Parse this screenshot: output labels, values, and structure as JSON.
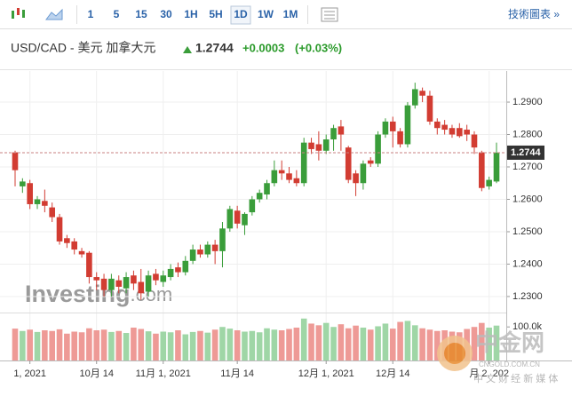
{
  "toolbar": {
    "intervals": [
      "1",
      "5",
      "15",
      "30",
      "1H",
      "5H",
      "1D",
      "1W",
      "1M"
    ],
    "selected": "1D",
    "link": "技術圖表 »"
  },
  "quote": {
    "title": "USD/CAD - 美元 加拿大元",
    "price": "1.2744",
    "change": "+0.0003",
    "change_pct": "(+0.03%)"
  },
  "watermark": {
    "brand": "Investing",
    "brand_suffix": ".com",
    "logo": "中金网",
    "logo_sub": "CNGOLD.COM.CN",
    "slogan": "中 文 财 经 新 媒 体"
  },
  "chart_data": {
    "type": "candlestick",
    "categories": [
      null,
      null,
      null,
      null,
      null,
      null,
      null,
      null,
      null,
      null,
      null,
      null,
      null,
      null,
      null,
      null,
      null,
      null,
      null,
      null,
      null,
      null,
      null,
      null,
      null,
      null,
      null,
      null,
      null,
      null,
      null,
      null,
      null,
      null,
      null,
      null,
      null,
      null,
      null,
      null,
      null,
      null,
      null,
      null,
      null,
      null,
      null,
      null,
      null,
      null,
      null,
      null,
      null,
      null,
      null,
      null,
      null,
      null,
      null,
      null,
      null,
      null,
      null,
      null,
      null,
      null
    ],
    "open": [
      1.2745,
      1.264,
      1.265,
      1.2585,
      1.2595,
      1.2575,
      1.2545,
      1.248,
      1.247,
      1.244,
      1.2435,
      1.236,
      1.2355,
      1.232,
      1.235,
      1.2325,
      1.2365,
      1.2345,
      1.2315,
      1.237,
      1.2345,
      1.236,
      1.239,
      1.2375,
      1.241,
      1.2445,
      1.243,
      1.246,
      1.244,
      1.251,
      1.2565,
      1.252,
      1.256,
      1.26,
      1.2615,
      1.265,
      1.269,
      1.268,
      1.2665,
      1.265,
      1.2775,
      1.277,
      1.275,
      1.2785,
      1.2825,
      1.276,
      1.268,
      1.265,
      1.272,
      1.271,
      1.28,
      1.284,
      1.281,
      1.277,
      1.289,
      1.2935,
      1.292,
      1.284,
      1.283,
      1.282,
      1.282,
      1.2815,
      1.28,
      1.2745,
      1.264,
      1.2655
    ],
    "high": [
      1.275,
      1.2665,
      1.266,
      1.261,
      1.263,
      1.259,
      1.2555,
      1.249,
      1.248,
      1.245,
      1.244,
      1.2375,
      1.237,
      1.237,
      1.2365,
      1.2375,
      1.238,
      1.2385,
      1.238,
      1.2385,
      1.238,
      1.24,
      1.2405,
      1.2425,
      1.246,
      1.246,
      1.247,
      1.2475,
      1.253,
      1.258,
      1.258,
      1.256,
      1.261,
      1.263,
      1.266,
      1.272,
      1.272,
      1.27,
      1.269,
      1.279,
      1.279,
      1.281,
      1.28,
      1.283,
      1.2845,
      1.2765,
      1.269,
      1.272,
      1.273,
      1.281,
      1.285,
      1.2855,
      1.282,
      1.29,
      1.296,
      1.2945,
      1.2935,
      1.285,
      1.2845,
      1.283,
      1.2835,
      1.283,
      1.281,
      1.275,
      1.267,
      1.2775
    ],
    "low": [
      1.264,
      1.262,
      1.257,
      1.257,
      1.256,
      1.253,
      1.246,
      1.245,
      1.243,
      1.242,
      1.234,
      1.232,
      1.23,
      1.23,
      1.231,
      1.231,
      1.232,
      1.229,
      1.23,
      1.2335,
      1.233,
      1.235,
      1.236,
      1.2365,
      1.24,
      1.242,
      1.242,
      1.24,
      1.239,
      1.25,
      1.251,
      1.249,
      1.255,
      1.259,
      1.26,
      1.264,
      1.266,
      1.265,
      1.264,
      1.264,
      1.274,
      1.272,
      1.274,
      1.275,
      1.275,
      1.265,
      1.261,
      1.263,
      1.27,
      1.27,
      1.279,
      1.276,
      1.276,
      1.276,
      1.288,
      1.29,
      1.283,
      1.28,
      1.28,
      1.279,
      1.279,
      1.278,
      1.274,
      1.2625,
      1.263,
      1.265
    ],
    "close": [
      1.269,
      1.2655,
      1.2585,
      1.26,
      1.258,
      1.2545,
      1.247,
      1.2465,
      1.2445,
      1.243,
      1.236,
      1.235,
      1.232,
      1.2355,
      1.233,
      1.236,
      1.234,
      1.231,
      1.2365,
      1.235,
      1.2365,
      1.2385,
      1.2375,
      1.241,
      1.2445,
      1.243,
      1.246,
      1.244,
      1.251,
      1.257,
      1.2525,
      1.2555,
      1.26,
      1.262,
      1.265,
      1.269,
      1.268,
      1.266,
      1.265,
      1.2775,
      1.2755,
      1.275,
      1.2785,
      1.282,
      1.28,
      1.266,
      1.265,
      1.271,
      1.271,
      1.28,
      1.284,
      1.281,
      1.277,
      1.289,
      1.294,
      1.292,
      1.284,
      1.282,
      1.2815,
      1.28,
      1.2795,
      1.28,
      1.276,
      1.2635,
      1.266,
      1.2744
    ],
    "volume": [
      95000,
      88000,
      92000,
      85000,
      90000,
      88000,
      93000,
      80000,
      86000,
      84000,
      96000,
      90000,
      92000,
      85000,
      88000,
      82000,
      98000,
      94000,
      87000,
      80000,
      86000,
      84000,
      90000,
      78000,
      85000,
      88000,
      83000,
      92000,
      100000,
      95000,
      90000,
      86000,
      88000,
      84000,
      96000,
      92000,
      90000,
      94000,
      98000,
      125000,
      110000,
      105000,
      112000,
      100000,
      108000,
      96000,
      104000,
      98000,
      92000,
      102000,
      110000,
      95000,
      115000,
      118000,
      105000,
      96000,
      92000,
      88000,
      90000,
      86000,
      84000,
      94000,
      100000,
      112000,
      98000,
      104000
    ],
    "up_color": "#3a9d3a",
    "down_color": "#d23c32",
    "volume_up_color": "#9fd6a6",
    "volume_down_color": "#ee9a96",
    "ylim": [
      1.2256,
      1.2996
    ],
    "yticks": [
      {
        "value": 1.23,
        "label": "1.2300"
      },
      {
        "value": 1.24,
        "label": "1.2400"
      },
      {
        "value": 1.25,
        "label": "1.2500"
      },
      {
        "value": 1.26,
        "label": "1.2600"
      },
      {
        "value": 1.27,
        "label": "1.2700"
      },
      {
        "value": 1.28,
        "label": "1.2800"
      },
      {
        "value": 1.29,
        "label": "1.2900"
      }
    ],
    "vlim": [
      0,
      135000
    ],
    "vticks": [
      {
        "value": 100000,
        "label": "100.0k"
      }
    ],
    "current": {
      "value": 1.2744,
      "label": "1.2744"
    },
    "xticks": [
      {
        "value": 2,
        "label": "1, 2021"
      },
      {
        "value": 11,
        "label": "10月 14"
      },
      {
        "value": 20,
        "label": "11月 1, 2021"
      },
      {
        "value": 30,
        "label": "11月 14"
      },
      {
        "value": 42,
        "label": "12月 1, 2021"
      },
      {
        "value": 51,
        "label": "12月 14"
      },
      {
        "value": 64,
        "label": "月 2, 202"
      }
    ],
    "grid": true
  }
}
